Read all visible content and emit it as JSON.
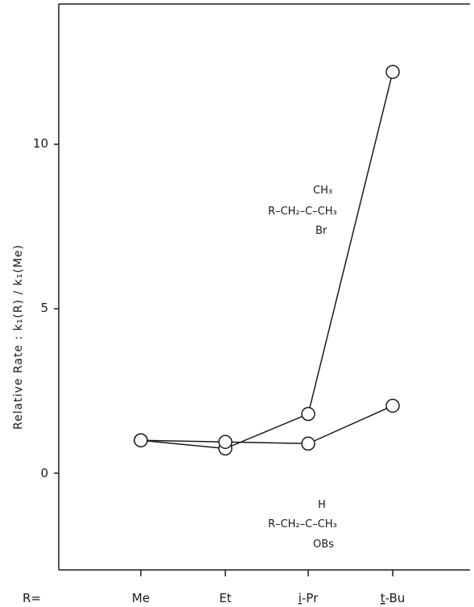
{
  "chart_data": {
    "type": "line",
    "ylabel": "Relative Rate :  k₁(R) / k₁(Me)",
    "xlabel_prefix": "R=",
    "categories": [
      "Me",
      "Et",
      "i-Pr",
      "t-Bu"
    ],
    "category_parts": [
      {
        "prefix": "",
        "main": "Me"
      },
      {
        "prefix": "",
        "main": "Et"
      },
      {
        "prefix": "i",
        "main": "-Pr"
      },
      {
        "prefix": "t",
        "main": "-Bu"
      }
    ],
    "ylim": [
      -3,
      14
    ],
    "yticks": [
      0,
      5,
      10
    ],
    "grid": false,
    "legend": "none",
    "series": [
      {
        "values": [
          1.0,
          0.75,
          1.8,
          12.2
        ],
        "label_lines": [
          "CH₃",
          "R–CH₂–C–CH₃",
          "Br"
        ]
      },
      {
        "values": [
          1.0,
          0.95,
          0.9,
          2.05
        ],
        "label_lines": [
          "H",
          "R–CH₂–C–CH₃",
          "OBs"
        ]
      }
    ]
  }
}
